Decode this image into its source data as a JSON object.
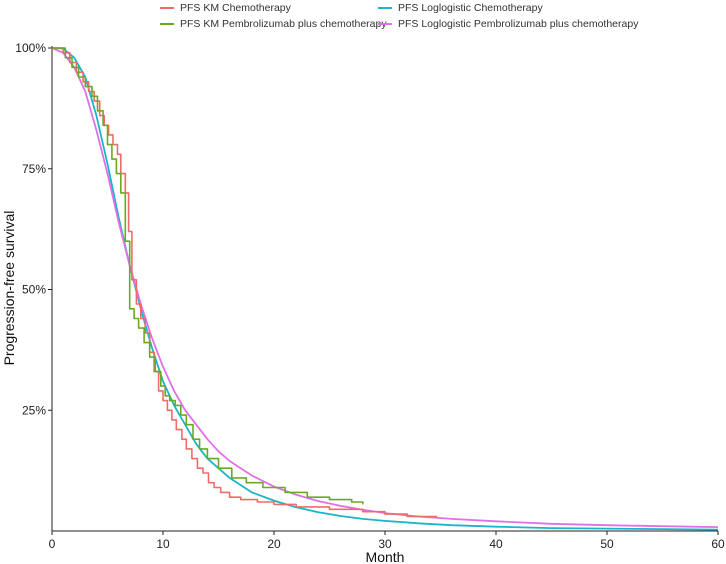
{
  "chart_data": {
    "type": "line",
    "title": "",
    "xlabel": "Month",
    "ylabel": "Progression-free survival",
    "xlim": [
      0,
      60
    ],
    "ylim": [
      0,
      1
    ],
    "x_ticks": [
      "0",
      "10",
      "20",
      "30",
      "40",
      "50",
      "60"
    ],
    "y_ticks": [
      "25%",
      "50%",
      "75%",
      "100%"
    ],
    "grid": false,
    "legend_position": "top",
    "series": [
      {
        "name": "PFS KM Chemotherapy",
        "color": "#ef6b6b",
        "step": true,
        "x": [
          0,
          1.0,
          1.6,
          2.2,
          2.8,
          3.3,
          3.8,
          4.3,
          4.7,
          5.1,
          5.5,
          5.9,
          6.2,
          6.6,
          6.9,
          7.2,
          7.6,
          8.0,
          8.4,
          8.8,
          9.2,
          9.6,
          10.0,
          10.4,
          10.8,
          11.2,
          11.7,
          12.1,
          12.6,
          13.1,
          13.6,
          14.1,
          14.6,
          15.2,
          16.0,
          17.0,
          18.5,
          20.0,
          22.0,
          25.0,
          28.0,
          30.0,
          32.0,
          34.7
        ],
        "values": [
          1.0,
          0.99,
          0.97,
          0.95,
          0.93,
          0.91,
          0.89,
          0.86,
          0.84,
          0.82,
          0.8,
          0.78,
          0.74,
          0.7,
          0.62,
          0.52,
          0.47,
          0.44,
          0.41,
          0.37,
          0.33,
          0.29,
          0.27,
          0.25,
          0.23,
          0.21,
          0.19,
          0.17,
          0.15,
          0.13,
          0.12,
          0.1,
          0.09,
          0.08,
          0.07,
          0.065,
          0.06,
          0.055,
          0.05,
          0.045,
          0.04,
          0.035,
          0.03,
          0.03
        ]
      },
      {
        "name": "PFS KM Pembrolizumab plus chemotherapy",
        "color": "#6aaa22",
        "step": true,
        "x": [
          0,
          1.2,
          1.8,
          2.4,
          3.0,
          3.6,
          4.1,
          4.6,
          5.0,
          5.4,
          5.8,
          6.2,
          6.6,
          7.0,
          7.4,
          7.8,
          8.3,
          8.8,
          9.3,
          9.8,
          10.2,
          10.6,
          11.1,
          11.6,
          12.1,
          12.7,
          13.3,
          14.0,
          15.0,
          16.2,
          17.5,
          19.0,
          21.0,
          23.0,
          25.0,
          27.0,
          28.0
        ],
        "values": [
          1.0,
          0.98,
          0.96,
          0.94,
          0.92,
          0.9,
          0.87,
          0.84,
          0.8,
          0.77,
          0.74,
          0.7,
          0.6,
          0.46,
          0.44,
          0.42,
          0.39,
          0.36,
          0.33,
          0.3,
          0.28,
          0.27,
          0.26,
          0.24,
          0.22,
          0.19,
          0.17,
          0.15,
          0.13,
          0.11,
          0.1,
          0.09,
          0.08,
          0.07,
          0.065,
          0.06,
          0.055
        ]
      },
      {
        "name": "PFS Loglogistic Chemotherapy",
        "color": "#1ab5c8",
        "step": false,
        "x": [
          0,
          1,
          2,
          3,
          4,
          5,
          6,
          7,
          8,
          9,
          10,
          11,
          12,
          13,
          14,
          15,
          16,
          18,
          20,
          22,
          24,
          26,
          28,
          30,
          33,
          36,
          40,
          45,
          50,
          55,
          60
        ],
        "values": [
          1.0,
          0.999,
          0.98,
          0.94,
          0.86,
          0.76,
          0.65,
          0.55,
          0.46,
          0.38,
          0.31,
          0.26,
          0.22,
          0.18,
          0.15,
          0.13,
          0.11,
          0.08,
          0.063,
          0.049,
          0.039,
          0.031,
          0.025,
          0.021,
          0.016,
          0.012,
          0.009,
          0.006,
          0.005,
          0.004,
          0.003
        ]
      },
      {
        "name": "PFS Loglogistic Pembrolizumab plus chemotherapy",
        "color": "#e070e8",
        "step": false,
        "x": [
          0,
          1,
          2,
          3,
          4,
          5,
          6,
          7,
          8,
          9,
          10,
          11,
          12,
          13,
          14,
          15,
          16,
          18,
          20,
          22,
          24,
          26,
          28,
          30,
          33,
          36,
          40,
          45,
          50,
          55,
          60
        ],
        "values": [
          1.0,
          0.99,
          0.96,
          0.91,
          0.83,
          0.74,
          0.64,
          0.55,
          0.47,
          0.4,
          0.34,
          0.29,
          0.25,
          0.22,
          0.19,
          0.165,
          0.145,
          0.115,
          0.092,
          0.075,
          0.062,
          0.052,
          0.044,
          0.037,
          0.03,
          0.025,
          0.02,
          0.015,
          0.012,
          0.01,
          0.008
        ]
      }
    ]
  }
}
